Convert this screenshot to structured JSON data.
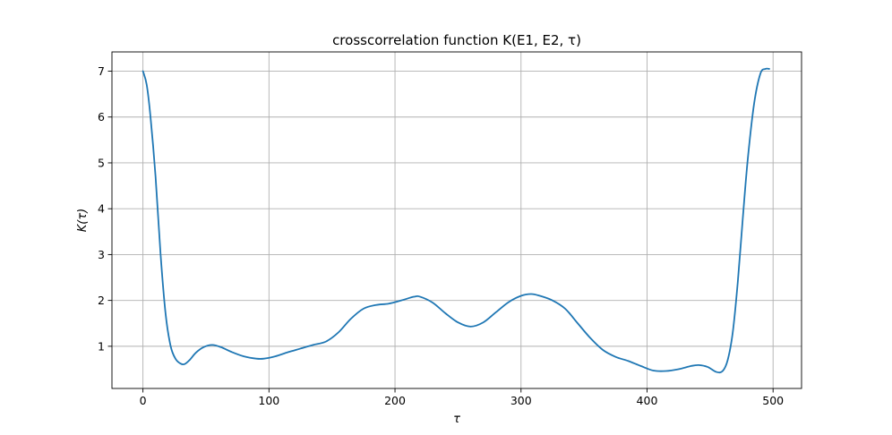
{
  "chart_data": {
    "type": "line",
    "title": "crosscorrelation function K(E1, E2, τ)",
    "xlabel": "τ",
    "ylabel": "K(τ)",
    "xlim": [
      -24.6,
      522.6
    ],
    "ylim": [
      0.08,
      7.42
    ],
    "xticks": [
      0,
      100,
      200,
      300,
      400,
      500
    ],
    "yticks": [
      1,
      2,
      3,
      4,
      5,
      6,
      7
    ],
    "grid": true,
    "series": [
      {
        "name": "",
        "color": "#1f77b4",
        "x": [
          0,
          3,
          6,
          10,
          14,
          18,
          22,
          26,
          30,
          33,
          37,
          42,
          48,
          55,
          62,
          70,
          80,
          90,
          96,
          105,
          115,
          125,
          135,
          145,
          155,
          165,
          175,
          185,
          195,
          205,
          215,
          220,
          230,
          240,
          250,
          260,
          270,
          280,
          290,
          300,
          308,
          315,
          325,
          335,
          345,
          355,
          365,
          375,
          385,
          395,
          405,
          415,
          425,
          435,
          441,
          448,
          455,
          460,
          464,
          468,
          472,
          476,
          480,
          485,
          490,
          494,
          497
        ],
        "y": [
          7.0,
          6.7,
          6.0,
          4.7,
          3.0,
          1.7,
          1.0,
          0.72,
          0.62,
          0.61,
          0.7,
          0.86,
          0.98,
          1.03,
          0.98,
          0.88,
          0.78,
          0.73,
          0.73,
          0.78,
          0.87,
          0.95,
          1.03,
          1.1,
          1.3,
          1.6,
          1.82,
          1.9,
          1.93,
          2.0,
          2.08,
          2.08,
          1.95,
          1.72,
          1.52,
          1.43,
          1.52,
          1.74,
          1.96,
          2.1,
          2.14,
          2.1,
          2.0,
          1.82,
          1.5,
          1.18,
          0.92,
          0.77,
          0.68,
          0.57,
          0.47,
          0.46,
          0.5,
          0.57,
          0.59,
          0.55,
          0.44,
          0.46,
          0.7,
          1.3,
          2.4,
          3.8,
          5.1,
          6.3,
          6.95,
          7.05,
          7.05
        ]
      }
    ]
  }
}
